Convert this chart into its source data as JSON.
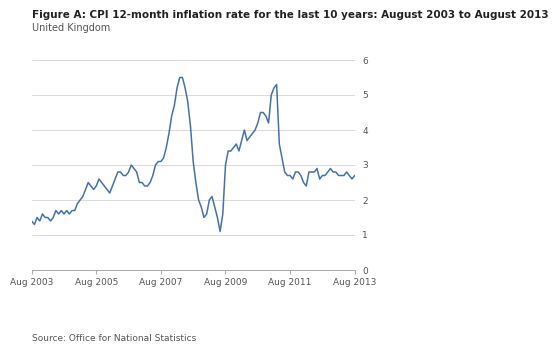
{
  "title": "Figure A: CPI 12-month inflation rate for the last 10 years: August 2003 to August 2013",
  "subtitle": "United Kingdom",
  "source": "Source: Office for National Statistics",
  "line_color": "#4472a8",
  "background_color": "#ffffff",
  "ylim": [
    0,
    6
  ],
  "yticks": [
    0,
    1,
    2,
    3,
    4,
    5,
    6
  ],
  "xtick_labels": [
    "Aug 2003",
    "Aug 2005",
    "Aug 2007",
    "Aug 2009",
    "Aug 2011",
    "Aug 2013"
  ],
  "data": [
    1.4,
    1.3,
    1.5,
    1.4,
    1.6,
    1.5,
    1.5,
    1.4,
    1.5,
    1.7,
    1.6,
    1.7,
    1.6,
    1.7,
    1.6,
    1.7,
    1.7,
    1.9,
    2.0,
    2.1,
    2.3,
    2.5,
    2.4,
    2.3,
    2.4,
    2.6,
    2.5,
    2.4,
    2.3,
    2.2,
    2.4,
    2.6,
    2.8,
    2.8,
    2.7,
    2.7,
    2.8,
    3.0,
    2.9,
    2.8,
    2.5,
    2.5,
    2.4,
    2.4,
    2.5,
    2.7,
    3.0,
    3.1,
    3.1,
    3.2,
    3.5,
    3.9,
    4.4,
    4.7,
    5.2,
    5.5,
    5.5,
    5.2,
    4.8,
    4.1,
    3.1,
    2.5,
    2.0,
    1.8,
    1.5,
    1.6,
    2.0,
    2.1,
    1.8,
    1.5,
    1.1,
    1.6,
    3.0,
    3.4,
    3.4,
    3.5,
    3.6,
    3.4,
    3.7,
    4.0,
    3.7,
    3.8,
    3.9,
    4.0,
    4.2,
    4.5,
    4.5,
    4.4,
    4.2,
    5.0,
    5.2,
    5.3,
    3.6,
    3.2,
    2.8,
    2.7,
    2.7,
    2.6,
    2.8,
    2.8,
    2.7,
    2.5,
    2.4,
    2.8,
    2.8,
    2.8,
    2.9,
    2.6,
    2.7,
    2.7,
    2.8,
    2.9,
    2.8,
    2.8,
    2.7,
    2.7,
    2.7,
    2.8,
    2.7,
    2.6,
    2.7
  ]
}
